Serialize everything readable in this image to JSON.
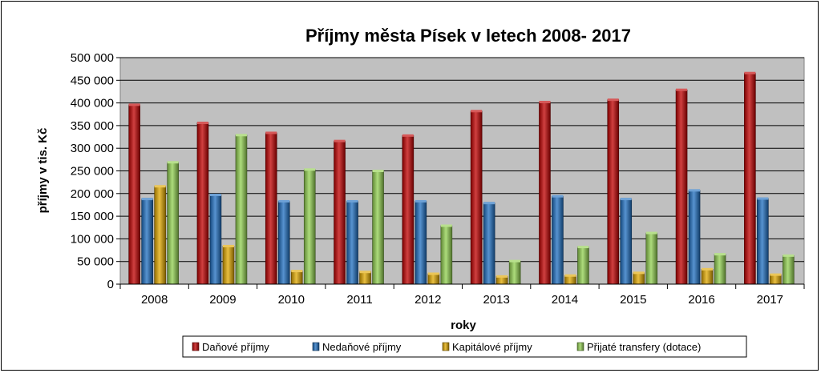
{
  "chart_data": {
    "type": "bar",
    "title": "Příjmy města Písek v letech 2008- 2017",
    "xlabel": "roky",
    "ylabel": "příjmy v tis. Kč",
    "ylim": [
      0,
      500000
    ],
    "y_ticks": [
      0,
      50000,
      100000,
      150000,
      200000,
      250000,
      300000,
      350000,
      400000,
      450000,
      500000
    ],
    "y_tick_labels": [
      "0",
      "50 000",
      "100 000",
      "150 000",
      "200 000",
      "250 000",
      "300 000",
      "350 000",
      "400 000",
      "450 000",
      "500 000"
    ],
    "grid": true,
    "legend_position": "bottom",
    "plot_background": "#c0c0c0",
    "categories": [
      "2008",
      "2009",
      "2010",
      "2011",
      "2012",
      "2013",
      "2014",
      "2015",
      "2016",
      "2017"
    ],
    "series": [
      {
        "name": "Daňové příjmy",
        "color": "#c00000",
        "values": [
          396000,
          356000,
          334000,
          316000,
          328000,
          382000,
          402000,
          407000,
          429000,
          466000
        ]
      },
      {
        "name": "Nedaňové příjmy",
        "color": "#1f6fc0",
        "values": [
          188000,
          197000,
          183000,
          183000,
          183000,
          179000,
          194000,
          188000,
          207000,
          189000
        ]
      },
      {
        "name": "Kapitálové příjmy",
        "color": "#e0a800",
        "values": [
          216000,
          84000,
          29000,
          27000,
          23000,
          17000,
          19000,
          25000,
          33000,
          21000
        ]
      },
      {
        "name": "Přijaté transfery (dotace)",
        "color": "#92d050",
        "values": [
          269000,
          329000,
          253000,
          250000,
          129000,
          51000,
          82000,
          113000,
          66000,
          63000
        ]
      }
    ]
  }
}
